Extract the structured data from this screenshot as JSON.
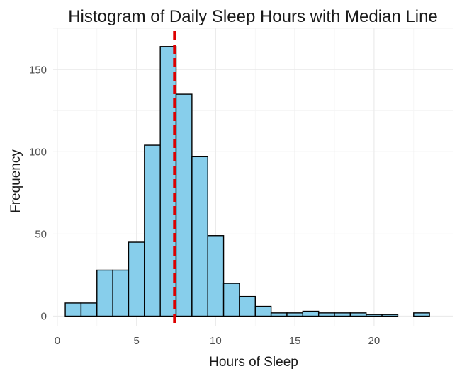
{
  "chart_data": {
    "type": "bar",
    "title": "Histogram of Daily Sleep Hours with Median Line",
    "xlabel": "Hours of Sleep",
    "ylabel": "Frequency",
    "xlim": [
      0,
      23.5
    ],
    "ylim": [
      0,
      170
    ],
    "x_ticks": [
      0,
      5,
      10,
      15,
      20
    ],
    "y_ticks": [
      0,
      50,
      100,
      150
    ],
    "grid": true,
    "legend": "none",
    "bin_width": 1,
    "bins": [
      {
        "start": 0.5,
        "end": 1.5,
        "count": 8
      },
      {
        "start": 1.5,
        "end": 2.5,
        "count": 8
      },
      {
        "start": 2.5,
        "end": 3.5,
        "count": 28
      },
      {
        "start": 3.5,
        "end": 4.5,
        "count": 28
      },
      {
        "start": 4.5,
        "end": 5.5,
        "count": 45
      },
      {
        "start": 5.5,
        "end": 6.5,
        "count": 104
      },
      {
        "start": 6.5,
        "end": 7.5,
        "count": 164
      },
      {
        "start": 7.5,
        "end": 8.5,
        "count": 135
      },
      {
        "start": 8.5,
        "end": 9.5,
        "count": 97
      },
      {
        "start": 9.5,
        "end": 10.5,
        "count": 49
      },
      {
        "start": 10.5,
        "end": 11.5,
        "count": 20
      },
      {
        "start": 11.5,
        "end": 12.5,
        "count": 12
      },
      {
        "start": 12.5,
        "end": 13.5,
        "count": 6
      },
      {
        "start": 13.5,
        "end": 14.5,
        "count": 2
      },
      {
        "start": 14.5,
        "end": 15.5,
        "count": 2
      },
      {
        "start": 15.5,
        "end": 16.5,
        "count": 3
      },
      {
        "start": 16.5,
        "end": 17.5,
        "count": 2
      },
      {
        "start": 17.5,
        "end": 18.5,
        "count": 2
      },
      {
        "start": 18.5,
        "end": 19.5,
        "count": 2
      },
      {
        "start": 19.5,
        "end": 20.5,
        "count": 1
      },
      {
        "start": 20.5,
        "end": 21.5,
        "count": 1
      },
      {
        "start": 21.5,
        "end": 22.5,
        "count": 0
      },
      {
        "start": 22.5,
        "end": 23.5,
        "count": 2
      }
    ],
    "median": 7.4,
    "colors": {
      "bar_fill": "#87ceeb",
      "bar_outline": "#000000",
      "median_line": "#dd0000"
    }
  }
}
